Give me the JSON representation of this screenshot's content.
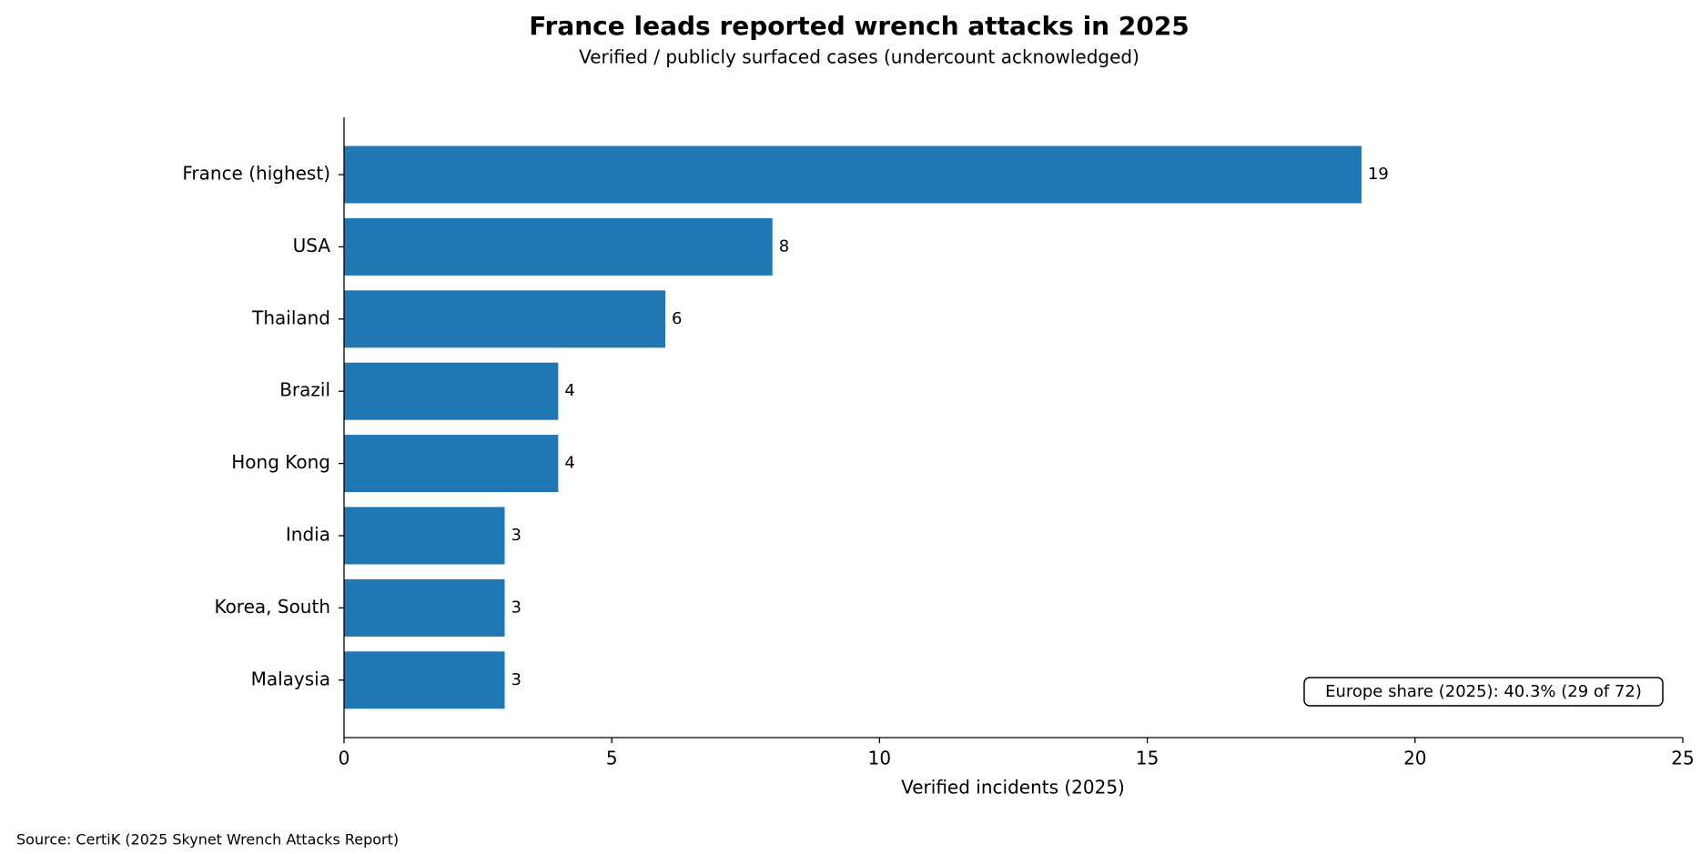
{
  "chart_data": {
    "type": "barh",
    "title": "France leads reported wrench attacks in 2025",
    "subtitle": "Verified / publicly surfaced cases (undercount acknowledged)",
    "x_label": "Verified incidents (2025)",
    "categories": [
      "France (highest)",
      "USA",
      "Thailand",
      "Brazil",
      "Hong Kong",
      "India",
      "Korea, South",
      "Malaysia"
    ],
    "values": [
      19,
      8,
      6,
      4,
      4,
      3,
      3,
      3
    ],
    "color": "#1f77b4",
    "xlim": [
      0,
      25
    ],
    "xticks": [
      0,
      5,
      10,
      15,
      20,
      25
    ],
    "grid": false,
    "annotation": "Europe share (2025): 40.3% (29 of 72)",
    "source": "Source: CertiK (2025 Skynet Wrench Attacks Report)"
  }
}
